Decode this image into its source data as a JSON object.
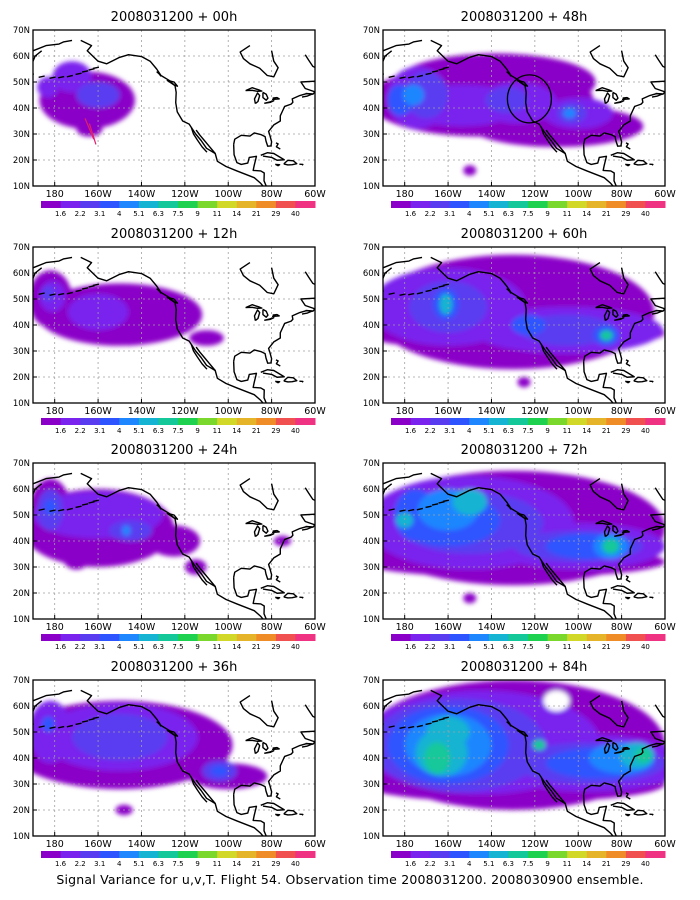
{
  "caption": "Signal Variance for u,v,T. Flight 54. Observation time 2008031200. 2008030900 ensemble.",
  "lat_labels": [
    "70N",
    "60N",
    "50N",
    "40N",
    "30N",
    "20N",
    "10N"
  ],
  "lon_labels": [
    "180",
    "160W",
    "140W",
    "120W",
    "100W",
    "80W",
    "60W"
  ],
  "colorbar": {
    "labels": [
      "1.6",
      "2.2",
      "3.1",
      "4",
      "5.1",
      "6.3",
      "7.5",
      "9",
      "11",
      "14",
      "21",
      "29",
      "40"
    ],
    "colors": [
      "#8a00c8",
      "#7a22ee",
      "#5a3cf0",
      "#2e54ff",
      "#1e86ff",
      "#14b4d2",
      "#14c89a",
      "#1ed250",
      "#7ad82c",
      "#d2d828",
      "#e6b428",
      "#f08c28",
      "#f05050",
      "#f03282"
    ]
  },
  "panels": [
    {
      "title": "2008031200 + 00h"
    },
    {
      "title": "2008031200 + 48h"
    },
    {
      "title": "2008031200 + 12h"
    },
    {
      "title": "2008031200 + 60h"
    },
    {
      "title": "2008031200 + 24h"
    },
    {
      "title": "2008031200 + 72h"
    },
    {
      "title": "2008031200 + 36h"
    },
    {
      "title": "2008031200 + 84h"
    }
  ]
}
